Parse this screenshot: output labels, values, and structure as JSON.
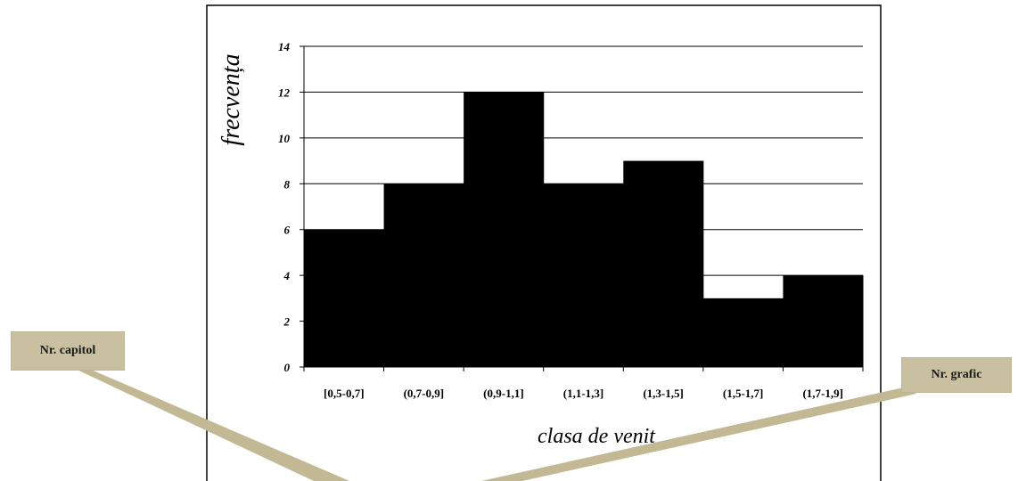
{
  "callouts": {
    "chapter": "Nr. capitol",
    "figure": "Nr. grafic"
  },
  "colors": {
    "bar": "#000000",
    "grid": "#000000",
    "callout_fill": "#c8c0a0",
    "callout_pointer": "#c2b994"
  },
  "chart_data": {
    "type": "bar",
    "title": "",
    "xlabel": "clasa de venit",
    "ylabel": "frecvența",
    "categories": [
      "[0,5-0,7]",
      "(0,7-0,9]",
      "(0,9-1,1]",
      "(1,1-1,3]",
      "(1,3-1,5]",
      "(1,5-1,7]",
      "(1,7-1,9]"
    ],
    "values": [
      6,
      8,
      12,
      8,
      9,
      3,
      4
    ],
    "ylim": [
      0,
      14
    ],
    "yticks": [
      0,
      2,
      4,
      6,
      8,
      10,
      12,
      14
    ],
    "grid": true,
    "legend": "none"
  }
}
